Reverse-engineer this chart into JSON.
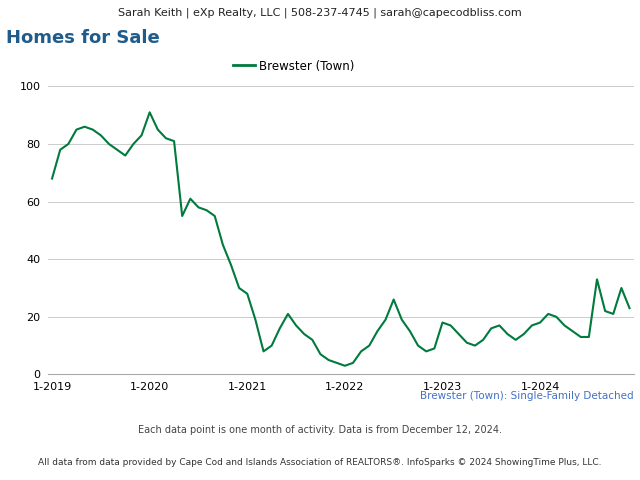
{
  "header_text": "Sarah Keith | eXp Realty, LLC | 508-237-4745 | sarah@capecodbliss.com",
  "title": "Homes for Sale",
  "legend_label": "Brewster (Town)",
  "subtitle": "Brewster (Town): Single-Family Detached",
  "footnote1": "Each data point is one month of activity. Data is from December 12, 2024.",
  "footnote2": "All data from data provided by Cape Cod and Islands Association of REALTORS®. InfoSparks © 2024 ShowingTime Plus, LLC.",
  "line_color": "#007a3d",
  "title_color": "#1f5c8b",
  "subtitle_color": "#4472c4",
  "header_bg": "#e0e0e0",
  "ylim": [
    0,
    100
  ],
  "yticks": [
    0,
    20,
    40,
    60,
    80,
    100
  ],
  "xtick_labels": [
    "1-2019",
    "1-2020",
    "1-2021",
    "1-2022",
    "1-2023",
    "1-2024"
  ],
  "values": [
    68,
    78,
    80,
    85,
    86,
    85,
    83,
    80,
    78,
    76,
    80,
    83,
    91,
    85,
    82,
    81,
    55,
    61,
    58,
    57,
    55,
    45,
    38,
    30,
    28,
    19,
    8,
    10,
    16,
    21,
    17,
    14,
    12,
    7,
    5,
    4,
    3,
    4,
    8,
    10,
    15,
    19,
    26,
    19,
    15,
    10,
    8,
    9,
    18,
    17,
    14,
    11,
    10,
    12,
    16,
    17,
    14,
    12,
    14,
    17,
    18,
    21,
    20,
    17,
    15,
    13,
    13,
    33,
    22,
    21,
    30,
    23
  ]
}
